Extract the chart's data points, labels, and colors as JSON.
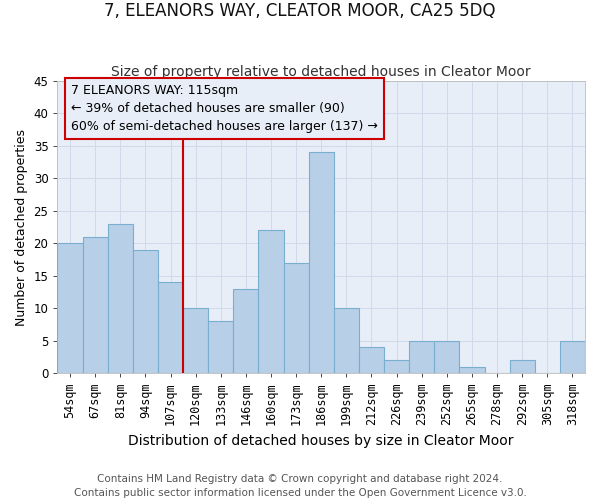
{
  "title": "7, ELEANORS WAY, CLEATOR MOOR, CA25 5DQ",
  "subtitle": "Size of property relative to detached houses in Cleator Moor",
  "xlabel": "Distribution of detached houses by size in Cleator Moor",
  "ylabel": "Number of detached properties",
  "footnote1": "Contains HM Land Registry data © Crown copyright and database right 2024.",
  "footnote2": "Contains public sector information licensed under the Open Government Licence v3.0.",
  "categories": [
    "54sqm",
    "67sqm",
    "81sqm",
    "94sqm",
    "107sqm",
    "120sqm",
    "133sqm",
    "146sqm",
    "160sqm",
    "173sqm",
    "186sqm",
    "199sqm",
    "212sqm",
    "226sqm",
    "239sqm",
    "252sqm",
    "265sqm",
    "278sqm",
    "292sqm",
    "305sqm",
    "318sqm"
  ],
  "values": [
    20,
    21,
    23,
    19,
    14,
    10,
    8,
    13,
    22,
    17,
    34,
    10,
    4,
    2,
    5,
    5,
    1,
    0,
    2,
    0,
    5
  ],
  "bar_color": "#b8cfe8",
  "bar_edge_color": "#7aaece",
  "vline_x": 4.5,
  "vline_color": "#cc0000",
  "annotation_line1": "7 ELEANORS WAY: 115sqm",
  "annotation_line2": "← 39% of detached houses are smaller (90)",
  "annotation_line3": "60% of semi-detached houses are larger (137) →",
  "annotation_box_edgecolor": "#cc0000",
  "ylim": [
    0,
    45
  ],
  "yticks": [
    0,
    5,
    10,
    15,
    20,
    25,
    30,
    35,
    40,
    45
  ],
  "grid_color": "#d0daea",
  "plot_bg_color": "#e8eef8",
  "fig_bg_color": "#ffffff",
  "title_fontsize": 12,
  "subtitle_fontsize": 10,
  "xlabel_fontsize": 10,
  "ylabel_fontsize": 9,
  "tick_fontsize": 8.5,
  "annot_fontsize": 9,
  "footnote_fontsize": 7.5
}
